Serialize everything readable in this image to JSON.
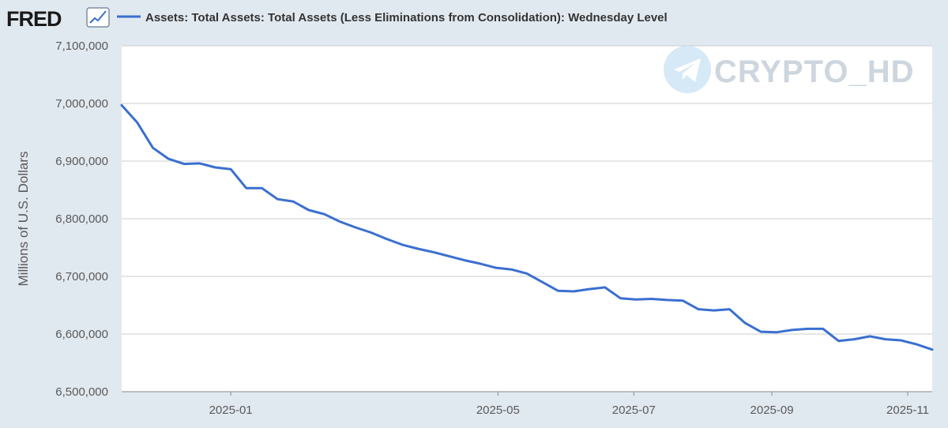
{
  "logo": {
    "text": "FRED"
  },
  "watermark": {
    "text": "CRYPTO_HD",
    "icon": "telegram-icon"
  },
  "colors": {
    "series": "#3a6fd0",
    "grid": "#cccccc",
    "plot_bg": "#ffffff",
    "page_bg": "#e1e9f0"
  },
  "chart_data": {
    "type": "line",
    "title": "",
    "xlabel": "",
    "ylabel": "Millions of U.S. Dollars",
    "legend": {
      "position": "top-left"
    },
    "grid": true,
    "xlim": [
      "2024-11-13",
      "2025-11-12"
    ],
    "ylim": [
      6500000,
      7100000
    ],
    "y_ticks": [
      {
        "value": 7100000,
        "label": "7,100,000"
      },
      {
        "value": 7000000,
        "label": "7,000,000"
      },
      {
        "value": 6900000,
        "label": "6,900,000"
      },
      {
        "value": 6800000,
        "label": "6,800,000"
      },
      {
        "value": 6700000,
        "label": "6,700,000"
      },
      {
        "value": 6600000,
        "label": "6,600,000"
      },
      {
        "value": 6500000,
        "label": "6,500,000"
      }
    ],
    "x_ticks": [
      {
        "value": "2025-01-01",
        "label": "2025-01"
      },
      {
        "value": "2025-05-01",
        "label": "2025-05"
      },
      {
        "value": "2025-07-01",
        "label": "2025-07"
      },
      {
        "value": "2025-09-01",
        "label": "2025-09"
      },
      {
        "value": "2025-11-01",
        "label": "2025-11"
      }
    ],
    "series": [
      {
        "name": "Assets: Total Assets: Total Assets (Less Eliminations from Consolidation): Wednesday Level",
        "x": [
          "2024-11-13",
          "2024-11-20",
          "2024-11-27",
          "2024-12-04",
          "2024-12-11",
          "2024-12-18",
          "2024-12-25",
          "2025-01-01",
          "2025-01-08",
          "2025-01-15",
          "2025-01-22",
          "2025-01-29",
          "2025-02-05",
          "2025-02-12",
          "2025-02-19",
          "2025-02-26",
          "2025-03-05",
          "2025-03-12",
          "2025-03-19",
          "2025-03-26",
          "2025-04-02",
          "2025-04-09",
          "2025-04-16",
          "2025-04-23",
          "2025-04-30",
          "2025-05-07",
          "2025-05-14",
          "2025-05-21",
          "2025-05-28",
          "2025-06-04",
          "2025-06-11",
          "2025-06-18",
          "2025-06-25",
          "2025-07-02",
          "2025-07-09",
          "2025-07-16",
          "2025-07-23",
          "2025-07-30",
          "2025-08-06",
          "2025-08-13",
          "2025-08-20",
          "2025-08-27",
          "2025-09-03",
          "2025-09-10",
          "2025-09-17",
          "2025-09-24",
          "2025-10-01",
          "2025-10-08",
          "2025-10-15",
          "2025-10-22",
          "2025-10-29",
          "2025-11-05",
          "2025-11-12"
        ],
        "values": [
          6997000,
          6967000,
          6923000,
          6904000,
          6895000,
          6896000,
          6889000,
          6886000,
          6853000,
          6853000,
          6834000,
          6830000,
          6815000,
          6808000,
          6795000,
          6785000,
          6776000,
          6765000,
          6755000,
          6748000,
          6742000,
          6735000,
          6728000,
          6722000,
          6715000,
          6712000,
          6705000,
          6690000,
          6675000,
          6674000,
          6678000,
          6681000,
          6662000,
          6660000,
          6661000,
          6659000,
          6658000,
          6643000,
          6641000,
          6643000,
          6619000,
          6604000,
          6603000,
          6607000,
          6609000,
          6609000,
          6588000,
          6591000,
          6596000,
          6591000,
          6589000,
          6582000,
          6573000
        ]
      }
    ]
  }
}
